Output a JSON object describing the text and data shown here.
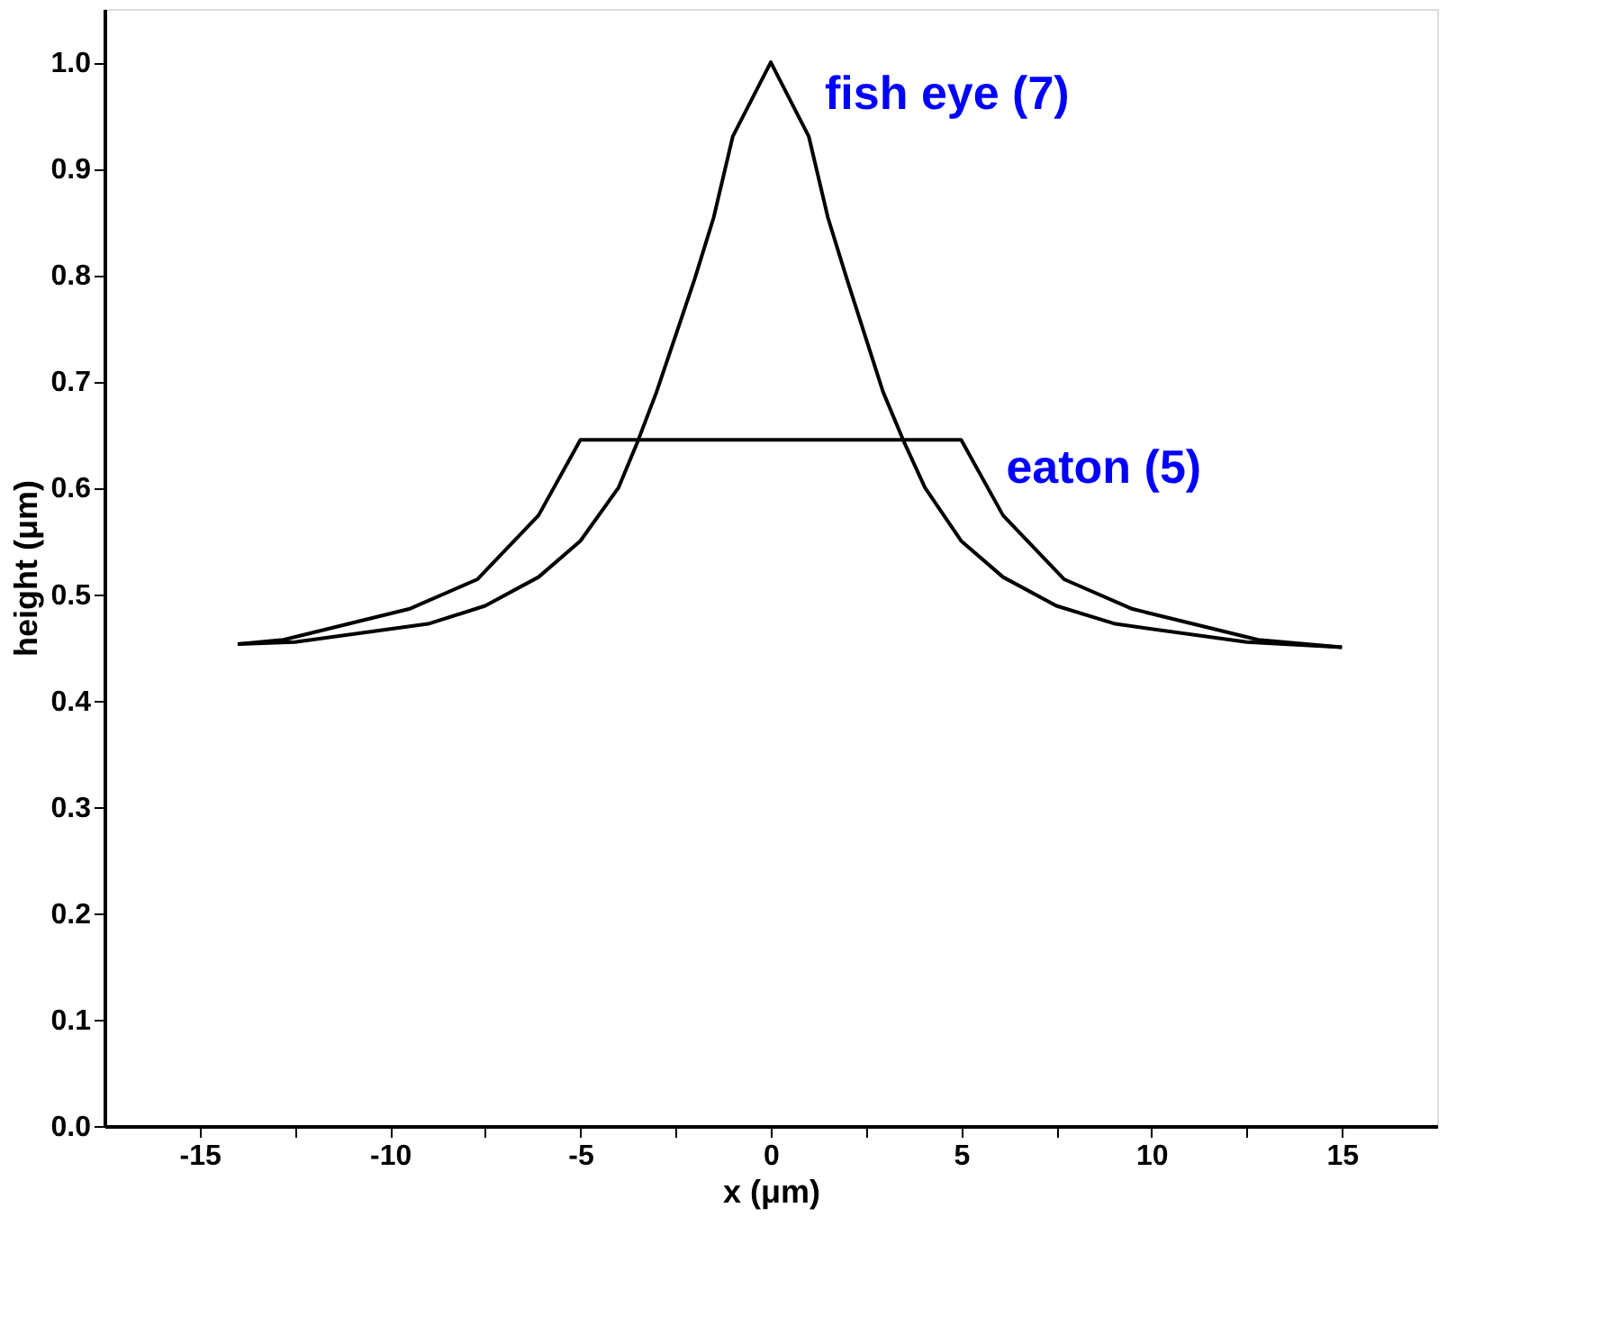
{
  "chart_data": {
    "type": "line",
    "xlabel": "x (μm)",
    "ylabel": "height (μm)",
    "xlim": [
      -17.5,
      17.5
    ],
    "ylim": [
      0,
      1.05
    ],
    "xticks": [
      {
        "value": -15,
        "label": "-15"
      },
      {
        "value": -12.5,
        "label": null
      },
      {
        "value": -10,
        "label": "-10"
      },
      {
        "value": -7.5,
        "label": null
      },
      {
        "value": -5,
        "label": "-5"
      },
      {
        "value": -2.5,
        "label": null
      },
      0,
      {
        "value": 2.5,
        "label": null
      },
      5,
      {
        "value": 7.5,
        "label": null
      },
      10,
      {
        "value": 12.5,
        "label": null
      },
      15
    ],
    "yticks": [
      {
        "value": 0,
        "label": "0.0"
      },
      0.1,
      0.2,
      0.3,
      0.4,
      0.5,
      0.6,
      0.7,
      0.8,
      0.9,
      {
        "value": 1.0,
        "label": "1.0"
      }
    ],
    "grid": false,
    "marker": "none",
    "line_style": "solid",
    "series": [
      {
        "name": "fish eye (7)",
        "color": "#000000",
        "x": [
          -14,
          -12.5,
          -9,
          -7.5,
          -6.1,
          -5,
          -4,
          -3.5,
          -3,
          -2,
          -1.5,
          -1,
          0,
          1,
          1.5,
          2,
          2.95,
          3.5,
          4.05,
          5,
          6.1,
          7.5,
          9.05,
          12.5,
          15
        ],
        "values": [
          0.453,
          0.455,
          0.472,
          0.489,
          0.516,
          0.55,
          0.6,
          0.643,
          0.69,
          0.796,
          0.854,
          0.93,
          1.0,
          0.93,
          0.854,
          0.796,
          0.69,
          0.643,
          0.6,
          0.55,
          0.516,
          0.489,
          0.472,
          0.455,
          0.45
        ]
      },
      {
        "name": "eaton (5)",
        "color": "#000000",
        "x": [
          -14,
          -12.8,
          -9.5,
          -7.7,
          -6.1,
          -5,
          5,
          6.1,
          7.7,
          9.5,
          12.8,
          15
        ],
        "values": [
          0.453,
          0.457,
          0.486,
          0.514,
          0.574,
          0.645,
          0.645,
          0.574,
          0.514,
          0.486,
          0.457,
          0.45
        ]
      }
    ]
  }
}
